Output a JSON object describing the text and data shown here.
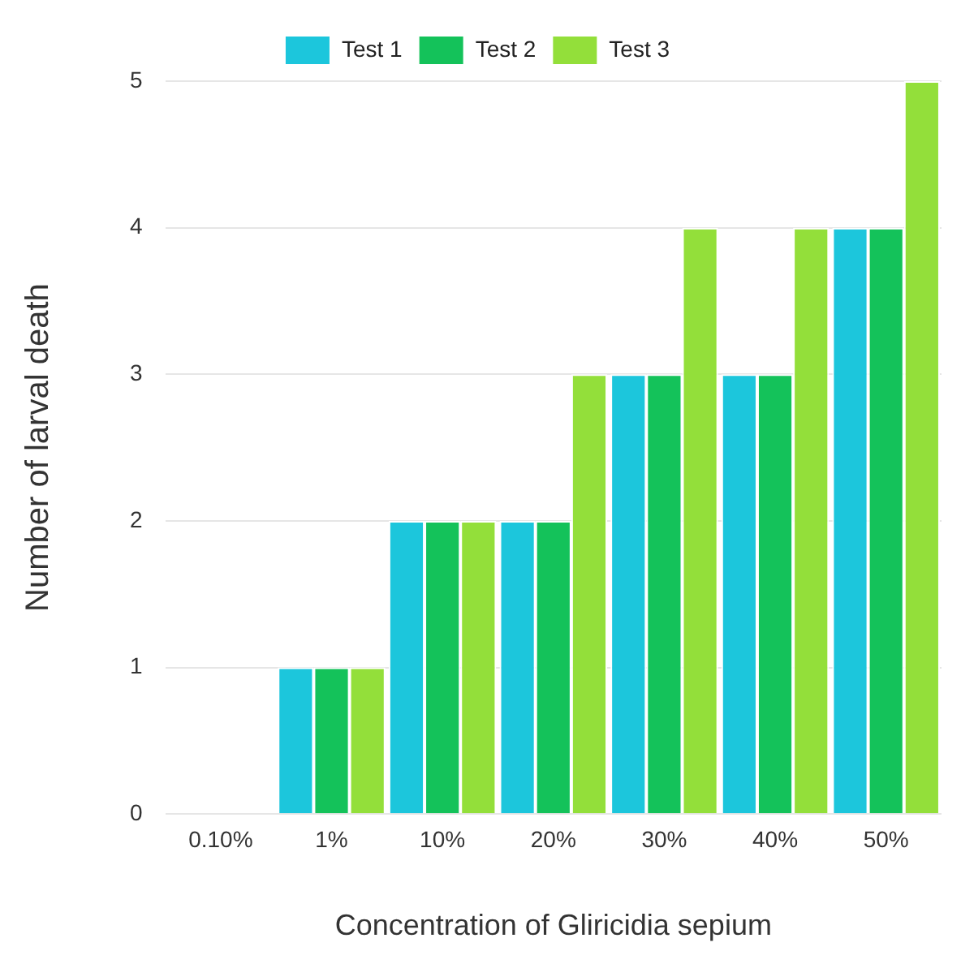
{
  "chart_data": {
    "type": "bar",
    "xlabel": "Concentration of Gliricidia sepium",
    "ylabel": "Number of larval death",
    "categories": [
      "0.10%",
      "1%",
      "10%",
      "20%",
      "30%",
      "40%",
      "50%"
    ],
    "series": [
      {
        "name": "Test 1",
        "color": "#1cc6dc",
        "values": [
          0,
          1,
          2,
          2,
          3,
          3,
          4
        ]
      },
      {
        "name": "Test 2",
        "color": "#14c25a",
        "values": [
          0,
          1,
          2,
          2,
          3,
          3,
          4
        ]
      },
      {
        "name": "Test 3",
        "color": "#93df3a",
        "values": [
          0,
          1,
          2,
          3,
          4,
          4,
          5
        ]
      }
    ],
    "ylim": [
      0,
      5
    ],
    "yticks": [
      0,
      1,
      2,
      3,
      4,
      5
    ],
    "grid": "y",
    "legend": "top"
  }
}
